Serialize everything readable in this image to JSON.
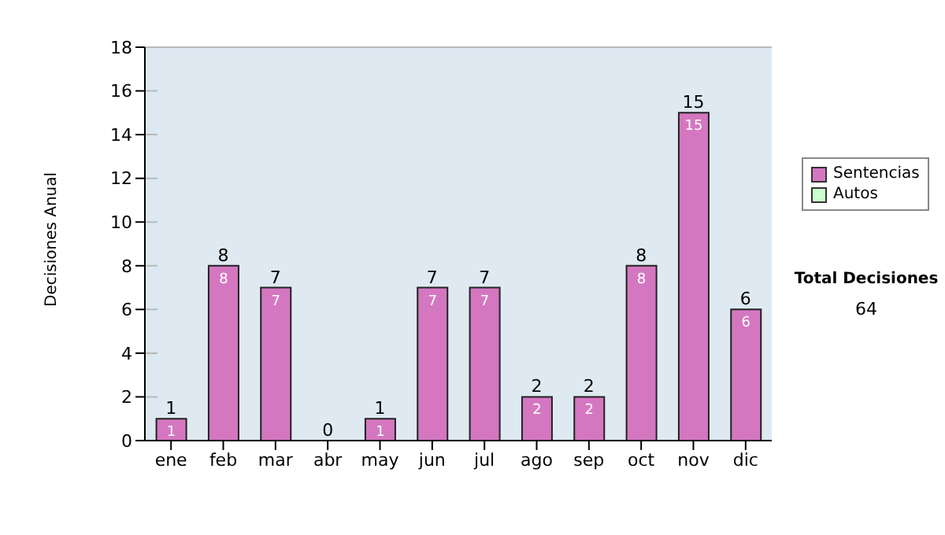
{
  "chart_data": {
    "type": "bar",
    "ylabel": "Decisiones Anual",
    "categories": [
      "ene",
      "feb",
      "mar",
      "abr",
      "may",
      "jun",
      "jul",
      "ago",
      "sep",
      "oct",
      "nov",
      "dic"
    ],
    "series": [
      {
        "name": "Sentencias",
        "color": "#d477c0",
        "values": [
          1,
          8,
          7,
          0,
          1,
          7,
          7,
          2,
          2,
          8,
          15,
          6
        ],
        "value_labels": [
          "1",
          "8",
          "7",
          null,
          "1",
          "7",
          "7",
          "2",
          "2",
          "8",
          "15",
          "6"
        ]
      },
      {
        "name": "Autos",
        "color": "#ccffcc",
        "values": [
          0,
          0,
          0,
          0,
          0,
          0,
          0,
          0,
          0,
          0,
          0,
          0
        ]
      }
    ],
    "stacked": true,
    "totals": [
      "1",
      "8",
      "7",
      "0",
      "1",
      "7",
      "7",
      "2",
      "2",
      "8",
      "15",
      "6"
    ],
    "ylim": [
      0,
      18
    ],
    "yticks": [
      0,
      2,
      4,
      6,
      8,
      10,
      12,
      14,
      16,
      18
    ],
    "grid": "y",
    "legend": "right",
    "annotations": [
      "Total Decisiones",
      "64"
    ]
  }
}
